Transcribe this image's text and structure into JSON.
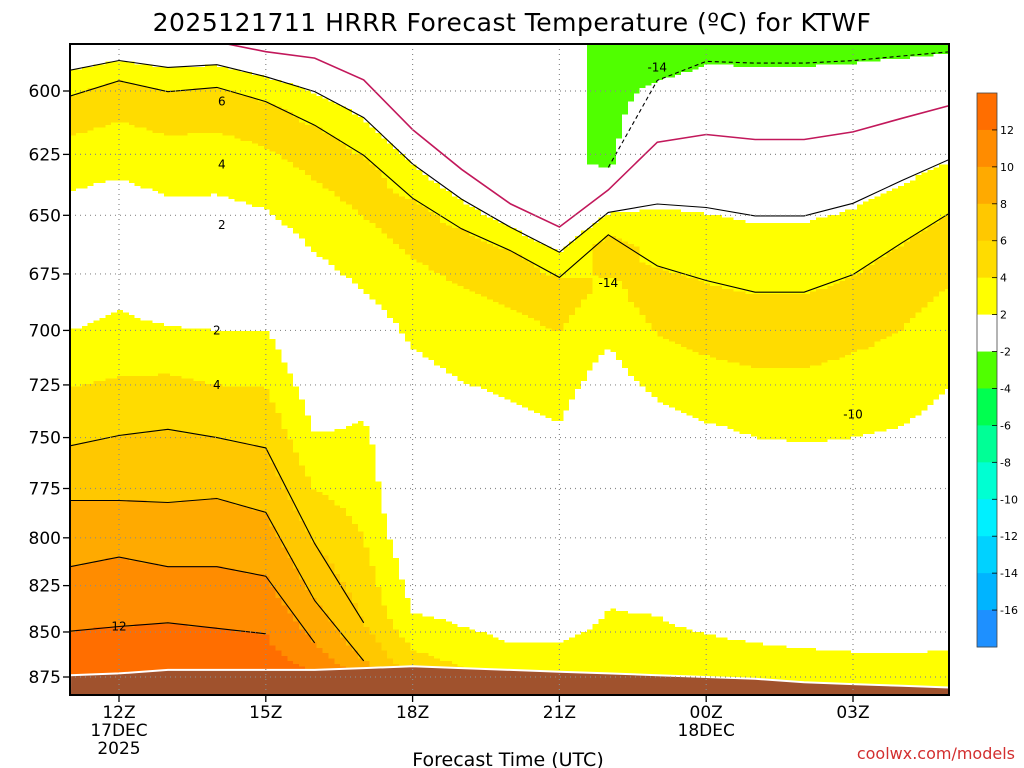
{
  "chart_data": {
    "type": "heatmap",
    "title": "2025121711 HRRR Forecast Temperature (ºC) for KTWF",
    "xlabel": "Forecast Time (UTC)",
    "ylabel": "",
    "credit": "coolwx.com/models",
    "x_ticks": [
      {
        "hour": 0,
        "lines": [
          "12Z",
          "17DEC",
          "2025"
        ]
      },
      {
        "hour": 3,
        "lines": [
          "15Z"
        ]
      },
      {
        "hour": 6,
        "lines": [
          "18Z"
        ]
      },
      {
        "hour": 9,
        "lines": [
          "21Z"
        ]
      },
      {
        "hour": 12,
        "lines": [
          "00Z",
          "18DEC"
        ]
      },
      {
        "hour": 15,
        "lines": [
          "03Z"
        ]
      }
    ],
    "xlim": [
      -1,
      17
    ],
    "y_ticks": [
      600,
      625,
      650,
      675,
      700,
      725,
      750,
      775,
      800,
      825,
      850,
      875
    ],
    "ylim": [
      572,
      890
    ],
    "y_scale": "log-pressure",
    "grid": true,
    "colorbar": {
      "bins": [
        {
          "lo": -18,
          "hi": -16,
          "color": "#1e90ff"
        },
        {
          "lo": -16,
          "hi": -14,
          "color": "#00b4ff"
        },
        {
          "lo": -14,
          "hi": -12,
          "color": "#00d2ff"
        },
        {
          "lo": -12,
          "hi": -10,
          "color": "#00f0ff"
        },
        {
          "lo": -10,
          "hi": -8,
          "color": "#00ffd2"
        },
        {
          "lo": -8,
          "hi": -6,
          "color": "#00ff96"
        },
        {
          "lo": -6,
          "hi": -4,
          "color": "#00ff50"
        },
        {
          "lo": -4,
          "hi": -2,
          "color": "#50ff00"
        },
        {
          "lo": -2,
          "hi": 2,
          "color": "#ffffff"
        },
        {
          "lo": 2,
          "hi": 4,
          "color": "#ffff00"
        },
        {
          "lo": 4,
          "hi": 6,
          "color": "#ffdc00"
        },
        {
          "lo": 6,
          "hi": 8,
          "color": "#ffc800"
        },
        {
          "lo": 8,
          "hi": 10,
          "color": "#ffaa00"
        },
        {
          "lo": 10,
          "hi": 12,
          "color": "#ff8c00"
        },
        {
          "lo": 12,
          "hi": 14,
          "color": "#ff6e00"
        }
      ],
      "labels": [
        12,
        10,
        8,
        6,
        4,
        2,
        -2,
        -4,
        -6,
        -8,
        -10,
        -12,
        -14,
        -16
      ]
    },
    "contour_labels": [
      {
        "text": "6",
        "hour": 2.1,
        "p": 604
      },
      {
        "text": "4",
        "hour": 2.1,
        "p": 629
      },
      {
        "text": "2",
        "hour": 2.1,
        "p": 654
      },
      {
        "text": "2",
        "hour": 2.0,
        "p": 700
      },
      {
        "text": "4",
        "hour": 2.0,
        "p": 725
      },
      {
        "text": "12",
        "hour": 0.0,
        "p": 847
      },
      {
        "text": "-14",
        "hour": 11.0,
        "p": 591
      },
      {
        "text": "-14",
        "hour": 10.0,
        "p": 679
      },
      {
        "text": "-10",
        "hour": 15.0,
        "p": 739
      }
    ],
    "terrain_color": "#a0522d",
    "zero_line_color": "#c2185b",
    "surface_p": [
      874,
      873,
      871,
      871,
      871,
      871,
      870,
      869,
      870,
      871,
      872,
      873,
      874,
      875,
      876,
      878,
      879,
      880,
      881
    ],
    "columns": [
      {
        "hour": -1.0,
        "levels": [
          {
            "p": 575,
            "t": -1.5
          },
          {
            "p": 607,
            "t": 5
          },
          {
            "p": 628,
            "t": 3
          },
          {
            "p": 652,
            "t": 1
          },
          {
            "p": 676,
            "t": 0
          },
          {
            "p": 700,
            "t": 2
          },
          {
            "p": 726,
            "t": 4
          },
          {
            "p": 754,
            "t": 6
          },
          {
            "p": 781,
            "t": 8
          },
          {
            "p": 815,
            "t": 10
          },
          {
            "p": 840,
            "t": 11.8
          },
          {
            "p": 874,
            "t": 12.5
          }
        ]
      },
      {
        "hour": 0.0,
        "levels": [
          {
            "p": 575,
            "t": -1.5
          },
          {
            "p": 600,
            "t": 5
          },
          {
            "p": 624,
            "t": 3
          },
          {
            "p": 646,
            "t": 1
          },
          {
            "p": 665,
            "t": 0
          },
          {
            "p": 691,
            "t": 2
          },
          {
            "p": 721,
            "t": 4
          },
          {
            "p": 749,
            "t": 6
          },
          {
            "p": 781,
            "t": 8
          },
          {
            "p": 810,
            "t": 10
          },
          {
            "p": 847,
            "t": 12
          },
          {
            "p": 873,
            "t": 13
          }
        ]
      },
      {
        "hour": 1.0,
        "levels": [
          {
            "p": 575,
            "t": -1.5
          },
          {
            "p": 605,
            "t": 5
          },
          {
            "p": 630,
            "t": 3
          },
          {
            "p": 654,
            "t": 1
          },
          {
            "p": 676,
            "t": 0
          },
          {
            "p": 698,
            "t": 2
          },
          {
            "p": 720,
            "t": 4
          },
          {
            "p": 746,
            "t": 6
          },
          {
            "p": 782,
            "t": 8
          },
          {
            "p": 815,
            "t": 10
          },
          {
            "p": 845,
            "t": 12
          },
          {
            "p": 871,
            "t": 13
          }
        ]
      },
      {
        "hour": 2.0,
        "levels": [
          {
            "p": 575,
            "t": -1.5
          },
          {
            "p": 603,
            "t": 5
          },
          {
            "p": 629,
            "t": 3
          },
          {
            "p": 654,
            "t": 1
          },
          {
            "p": 673,
            "t": 0
          },
          {
            "p": 700,
            "t": 2
          },
          {
            "p": 725,
            "t": 4
          },
          {
            "p": 750,
            "t": 6
          },
          {
            "p": 780,
            "t": 8
          },
          {
            "p": 815,
            "t": 10
          },
          {
            "p": 848,
            "t": 12
          },
          {
            "p": 871,
            "t": 13
          }
        ]
      },
      {
        "hour": 3.0,
        "levels": [
          {
            "p": 578,
            "t": -1.5
          },
          {
            "p": 609,
            "t": 5
          },
          {
            "p": 635,
            "t": 3
          },
          {
            "p": 660,
            "t": 1
          },
          {
            "p": 676,
            "t": 0
          },
          {
            "p": 700,
            "t": 2
          },
          {
            "p": 726,
            "t": 4
          },
          {
            "p": 755,
            "t": 6
          },
          {
            "p": 787,
            "t": 8
          },
          {
            "p": 820,
            "t": 10
          },
          {
            "p": 851,
            "t": 12
          },
          {
            "p": 871,
            "t": 13
          }
        ]
      },
      {
        "hour": 4.0,
        "levels": [
          {
            "p": 578,
            "t": -1.5
          },
          {
            "p": 620,
            "t": 5
          },
          {
            "p": 651,
            "t": 3
          },
          {
            "p": 680,
            "t": 1
          },
          {
            "p": 711,
            "t": 0
          },
          {
            "p": 748,
            "t": 2
          },
          {
            "p": 776,
            "t": 4
          },
          {
            "p": 803,
            "t": 6
          },
          {
            "p": 833,
            "t": 8
          },
          {
            "p": 856,
            "t": 10
          },
          {
            "p": 871,
            "t": 11.9
          }
        ]
      },
      {
        "hour": 5.0,
        "levels": [
          {
            "p": 585,
            "t": -1.5
          },
          {
            "p": 633,
            "t": 5
          },
          {
            "p": 668,
            "t": 3
          },
          {
            "p": 697,
            "t": 1
          },
          {
            "p": 720,
            "t": 0
          },
          {
            "p": 742,
            "t": 2
          },
          {
            "p": 800,
            "t": 4
          },
          {
            "p": 845,
            "t": 6
          },
          {
            "p": 866,
            "t": 8
          },
          {
            "p": 870,
            "t": 9
          }
        ]
      },
      {
        "hour": 6.0,
        "levels": [
          {
            "p": 605,
            "t": -1.5
          },
          {
            "p": 650,
            "t": 5
          },
          {
            "p": 687,
            "t": 3
          },
          {
            "p": 730,
            "t": 1
          },
          {
            "p": 776,
            "t": -0.5
          },
          {
            "p": 795,
            "t": 0
          },
          {
            "p": 840,
            "t": 2
          },
          {
            "p": 860,
            "t": 4
          },
          {
            "p": 869,
            "t": 5
          }
        ]
      },
      {
        "hour": 7.0,
        "levels": [
          {
            "p": 622,
            "t": -1.5
          },
          {
            "p": 662,
            "t": 5
          },
          {
            "p": 700,
            "t": 3
          },
          {
            "p": 746,
            "t": 1
          },
          {
            "p": 790,
            "t": -0.5
          },
          {
            "p": 807,
            "t": 0
          },
          {
            "p": 847,
            "t": 2
          },
          {
            "p": 864,
            "t": 3.5
          },
          {
            "p": 870,
            "t": 4
          }
        ]
      },
      {
        "hour": 8.0,
        "levels": [
          {
            "p": 638,
            "t": -1.5
          },
          {
            "p": 670,
            "t": 5
          },
          {
            "p": 710,
            "t": 3
          },
          {
            "p": 755,
            "t": 1
          },
          {
            "p": 800,
            "t": -0.5
          },
          {
            "p": 823,
            "t": 0
          },
          {
            "p": 856,
            "t": 2
          },
          {
            "p": 871,
            "t": 3
          }
        ]
      },
      {
        "hour": 9.0,
        "levels": [
          {
            "p": 647,
            "t": -1.5
          },
          {
            "p": 682,
            "t": 5
          },
          {
            "p": 720,
            "t": 3
          },
          {
            "p": 765,
            "t": 1
          },
          {
            "p": 805,
            "t": -0.5
          },
          {
            "p": 826,
            "t": 0
          },
          {
            "p": 856,
            "t": 2
          },
          {
            "p": 872,
            "t": 3
          }
        ]
      },
      {
        "hour": 10.0,
        "levels": [
          {
            "p": 628,
            "t": -2.5
          },
          {
            "p": 663,
            "t": 5
          },
          {
            "p": 690,
            "t": 3
          },
          {
            "p": 725,
            "t": 1
          },
          {
            "p": 766,
            "t": -0.5
          },
          {
            "p": 805,
            "t": 0
          },
          {
            "p": 837,
            "t": 2
          },
          {
            "p": 873,
            "t": 3
          }
        ]
      },
      {
        "hour": 11.0,
        "levels": [
          {
            "p": 590,
            "t": -2.5
          },
          {
            "p": 685,
            "t": 5
          },
          {
            "p": 719,
            "t": 3
          },
          {
            "p": 745,
            "t": 1
          },
          {
            "p": 776,
            "t": -0.5
          },
          {
            "p": 808,
            "t": 0
          },
          {
            "p": 841,
            "t": 2
          },
          {
            "p": 874,
            "t": 3
          }
        ]
      },
      {
        "hour": 12.0,
        "levels": [
          {
            "p": 575,
            "t": -3
          },
          {
            "p": 694,
            "t": 5
          },
          {
            "p": 729,
            "t": 3
          },
          {
            "p": 756,
            "t": 1
          },
          {
            "p": 782,
            "t": -0.5
          },
          {
            "p": 815,
            "t": 0
          },
          {
            "p": 851,
            "t": 2
          },
          {
            "p": 875,
            "t": 3
          }
        ]
      },
      {
        "hour": 13.0,
        "levels": [
          {
            "p": 575,
            "t": -3
          },
          {
            "p": 700,
            "t": 5
          },
          {
            "p": 734,
            "t": 3
          },
          {
            "p": 766,
            "t": 1
          },
          {
            "p": 793,
            "t": -0.5
          },
          {
            "p": 825,
            "t": 0
          },
          {
            "p": 856,
            "t": 2
          },
          {
            "p": 876,
            "t": 3
          }
        ]
      },
      {
        "hour": 14.0,
        "levels": [
          {
            "p": 575,
            "t": -3
          },
          {
            "p": 700,
            "t": 5
          },
          {
            "p": 735,
            "t": 3
          },
          {
            "p": 770,
            "t": 1
          },
          {
            "p": 798,
            "t": -0.5
          },
          {
            "p": 832,
            "t": 0
          },
          {
            "p": 859,
            "t": 2
          },
          {
            "p": 878,
            "t": 3
          }
        ]
      },
      {
        "hour": 15.0,
        "levels": [
          {
            "p": 575,
            "t": -3
          },
          {
            "p": 691,
            "t": 5
          },
          {
            "p": 730,
            "t": 3
          },
          {
            "p": 770,
            "t": 1
          },
          {
            "p": 799,
            "t": -0.5
          },
          {
            "p": 830,
            "t": 0
          },
          {
            "p": 861,
            "t": 2
          },
          {
            "p": 879,
            "t": 3
          }
        ]
      },
      {
        "hour": 16.0,
        "levels": [
          {
            "p": 575,
            "t": -3
          },
          {
            "p": 675,
            "t": 5
          },
          {
            "p": 724,
            "t": 3
          },
          {
            "p": 766,
            "t": 1
          },
          {
            "p": 795,
            "t": -0.5
          },
          {
            "p": 826,
            "t": 0
          },
          {
            "p": 862,
            "t": 2
          },
          {
            "p": 880,
            "t": 3
          }
        ]
      },
      {
        "hour": 17.0,
        "levels": [
          {
            "p": 575,
            "t": -3
          },
          {
            "p": 660,
            "t": 5
          },
          {
            "p": 700,
            "t": 3
          },
          {
            "p": 750,
            "t": 1
          },
          {
            "p": 795,
            "t": -0.5
          },
          {
            "p": 822,
            "t": 0
          },
          {
            "p": 860,
            "t": 2
          },
          {
            "p": 881,
            "t": 3
          }
        ]
      }
    ]
  }
}
